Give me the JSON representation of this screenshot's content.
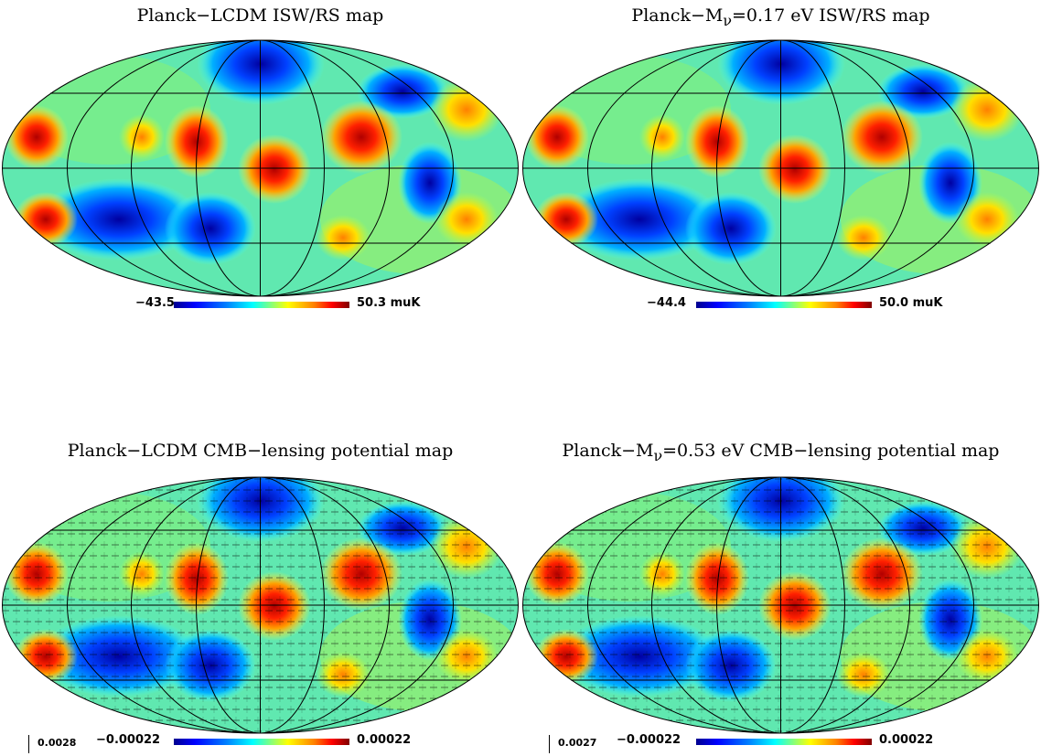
{
  "panels": [
    {
      "title_pre": "Planck−LCDM ISW/RS map",
      "title_sub": "",
      "title_post": "",
      "min": "−43.5",
      "max": "50.3 muK",
      "scale": ""
    },
    {
      "title_pre": "Planck−M",
      "title_sub": "ν",
      "title_post": "=0.17 eV ISW/RS map",
      "min": "−44.4",
      "max": "50.0 muK",
      "scale": ""
    },
    {
      "title_pre": "Planck−LCDM CMB−lensing potential map",
      "title_sub": "",
      "title_post": "",
      "min": "−0.00022",
      "max": "0.00022",
      "scale": "0.0028"
    },
    {
      "title_pre": "Planck−M",
      "title_sub": "ν",
      "title_post": "=0.53 eV CMB−lensing potential map",
      "min": "−0.00022",
      "max": "0.00022",
      "scale": "0.0027"
    }
  ],
  "colormap": [
    "#00008f",
    "#0000ff",
    "#0080ff",
    "#00ffff",
    "#80ff80",
    "#ffff00",
    "#ff8000",
    "#ff0000",
    "#800000"
  ]
}
